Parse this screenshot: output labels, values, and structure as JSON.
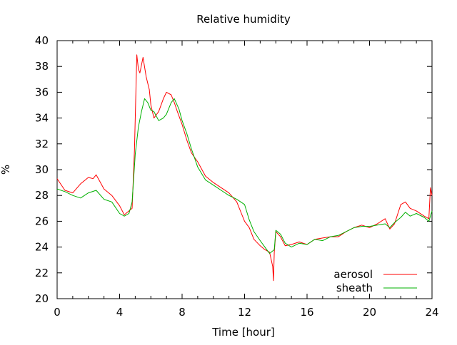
{
  "chart_data": {
    "type": "line",
    "title": "Relative humidity",
    "xlabel": "Time [hour]",
    "ylabel": "%",
    "xlim": [
      0,
      24
    ],
    "ylim": [
      20,
      40
    ],
    "xticks": [
      "0",
      "4",
      "8",
      "12",
      "16",
      "20",
      "24"
    ],
    "yticks": [
      "20",
      "22",
      "24",
      "26",
      "28",
      "30",
      "32",
      "34",
      "36",
      "38",
      "40"
    ],
    "grid": false,
    "legend": "bottom-right",
    "series": [
      {
        "name": "aerosol",
        "color": "#ff0000",
        "x": [
          0,
          0.5,
          1.0,
          1.5,
          2.0,
          2.3,
          2.5,
          3.0,
          3.5,
          4.0,
          4.3,
          4.6,
          4.8,
          4.95,
          5.0,
          5.1,
          5.2,
          5.3,
          5.5,
          5.7,
          5.9,
          6.0,
          6.2,
          6.5,
          6.8,
          7.0,
          7.3,
          7.5,
          7.7,
          8.0,
          8.3,
          8.6,
          9.0,
          9.5,
          10.0,
          10.5,
          11.0,
          11.5,
          11.8,
          12.0,
          12.3,
          12.6,
          13.0,
          13.3,
          13.6,
          13.8,
          13.85,
          13.9,
          14.0,
          14.3,
          14.6,
          15.0,
          15.5,
          16.0,
          16.5,
          17.0,
          17.5,
          18.0,
          18.5,
          19.0,
          19.5,
          20.0,
          20.5,
          21.0,
          21.3,
          21.6,
          22.0,
          22.3,
          22.6,
          23.0,
          23.5,
          23.8,
          23.9,
          24.0
        ],
        "y": [
          29.3,
          28.4,
          28.2,
          28.9,
          29.4,
          29.3,
          29.6,
          28.5,
          28.0,
          27.2,
          26.5,
          26.8,
          27.0,
          31.5,
          34.0,
          38.9,
          37.8,
          37.5,
          38.7,
          37.2,
          36.2,
          35.0,
          34.0,
          34.5,
          35.5,
          36.0,
          35.8,
          35.2,
          34.5,
          33.5,
          32.3,
          31.3,
          30.6,
          29.5,
          29.0,
          28.6,
          28.2,
          27.5,
          26.6,
          26.0,
          25.5,
          24.6,
          24.1,
          23.8,
          23.6,
          22.5,
          21.4,
          23.6,
          25.2,
          24.8,
          24.1,
          24.2,
          24.4,
          24.2,
          24.6,
          24.7,
          24.8,
          24.8,
          25.2,
          25.5,
          25.7,
          25.5,
          25.8,
          26.2,
          25.4,
          25.8,
          27.3,
          27.5,
          27.0,
          26.8,
          26.4,
          26.2,
          28.6,
          28.0
        ]
      },
      {
        "name": "sheath",
        "color": "#00b000",
        "x": [
          0,
          0.5,
          1.0,
          1.5,
          2.0,
          2.5,
          3.0,
          3.5,
          4.0,
          4.3,
          4.6,
          4.8,
          5.0,
          5.2,
          5.4,
          5.6,
          5.8,
          6.0,
          6.2,
          6.5,
          6.8,
          7.0,
          7.3,
          7.5,
          7.8,
          8.0,
          8.3,
          8.6,
          9.0,
          9.5,
          10.0,
          10.5,
          11.0,
          11.5,
          12.0,
          12.3,
          12.6,
          13.0,
          13.3,
          13.6,
          13.9,
          14.0,
          14.3,
          14.6,
          15.0,
          15.5,
          16.0,
          16.5,
          17.0,
          17.5,
          18.0,
          18.5,
          19.0,
          19.5,
          20.0,
          20.5,
          21.0,
          21.3,
          21.6,
          22.0,
          22.3,
          22.6,
          23.0,
          23.5,
          23.8,
          24.0
        ],
        "y": [
          28.5,
          28.3,
          28.0,
          27.8,
          28.2,
          28.4,
          27.7,
          27.5,
          26.6,
          26.4,
          26.6,
          27.5,
          31.2,
          33.3,
          34.5,
          35.5,
          35.2,
          34.6,
          34.5,
          33.8,
          34.0,
          34.3,
          35.2,
          35.5,
          34.7,
          33.8,
          32.8,
          31.6,
          30.2,
          29.2,
          28.8,
          28.4,
          28.0,
          27.7,
          27.3,
          26.1,
          25.2,
          24.5,
          24.0,
          23.5,
          23.8,
          25.3,
          25.0,
          24.3,
          24.0,
          24.3,
          24.2,
          24.6,
          24.5,
          24.8,
          24.9,
          25.2,
          25.5,
          25.6,
          25.6,
          25.7,
          25.8,
          25.5,
          25.9,
          26.3,
          26.7,
          26.4,
          26.6,
          26.3,
          26.0,
          26.8
        ]
      }
    ]
  }
}
